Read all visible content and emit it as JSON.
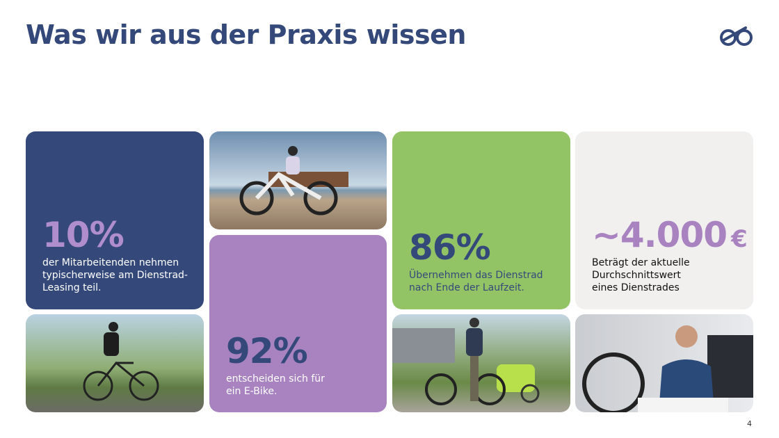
{
  "header": {
    "title": "Was wir aus der Praxis wissen",
    "page_number": "4"
  },
  "cards": [
    {
      "stat": "10%",
      "lines": [
        "der Mitarbeitenden nehmen",
        "typischerweise am Dienstrad-",
        "Leasing teil."
      ]
    },
    {
      "stat": "92%",
      "lines": [
        "entscheiden sich für",
        "ein E-Bike."
      ]
    },
    {
      "stat": "86%",
      "lines": [
        "Übernehmen das Dienstrad",
        "nach Ende der Laufzeit."
      ]
    },
    {
      "stat": "~4.000",
      "unit": "€",
      "lines": [
        "Beträgt der aktuelle",
        "Durchschnittswert",
        "eines Dienstrades"
      ]
    }
  ]
}
